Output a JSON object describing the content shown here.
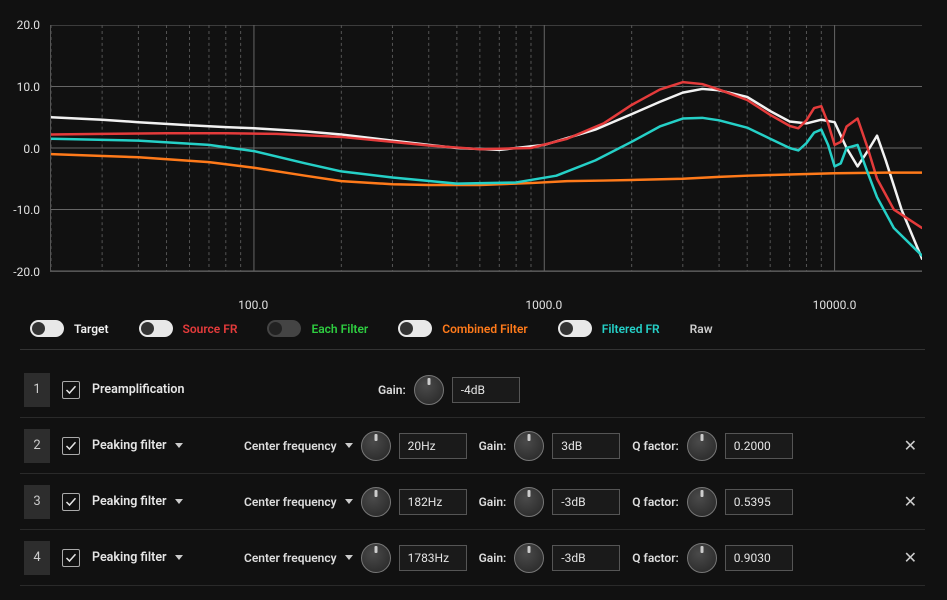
{
  "chart": {
    "type": "line",
    "y_ticks": [
      20.0,
      10.0,
      0.0,
      -10.0,
      -20.0
    ],
    "y_labels": [
      "20.0",
      "10.0",
      "0.0",
      "-10.0",
      "-20.0"
    ],
    "x_ticks_major": [
      100.0,
      1000.0,
      10000.0
    ],
    "x_labels": [
      "100.0",
      "1000.0",
      "10000.0"
    ],
    "x_scale": "log",
    "x_domain": [
      20,
      20000
    ],
    "y_domain": [
      -20,
      20
    ],
    "grid_color": "#666666",
    "minor_grid_color": "#555555",
    "background": "#111111",
    "axis_font_size": 12,
    "series": [
      {
        "name": "Target",
        "color": "#f2f2f2",
        "width": 2.5,
        "points": [
          [
            20,
            5.0
          ],
          [
            30,
            4.6
          ],
          [
            40,
            4.2
          ],
          [
            60,
            3.7
          ],
          [
            80,
            3.4
          ],
          [
            100,
            3.2
          ],
          [
            150,
            2.7
          ],
          [
            200,
            2.2
          ],
          [
            300,
            1.2
          ],
          [
            400,
            0.5
          ],
          [
            500,
            0.0
          ],
          [
            700,
            -0.3
          ],
          [
            1000,
            0.5
          ],
          [
            1500,
            3.0
          ],
          [
            2000,
            5.5
          ],
          [
            2500,
            7.5
          ],
          [
            3000,
            9.0
          ],
          [
            3500,
            9.6
          ],
          [
            4000,
            9.4
          ],
          [
            5000,
            8.3
          ],
          [
            6000,
            6.0
          ],
          [
            7000,
            4.3
          ],
          [
            8000,
            4.0
          ],
          [
            9000,
            4.6
          ],
          [
            10000,
            4.2
          ],
          [
            11000,
            0.0
          ],
          [
            12000,
            -3.0
          ],
          [
            13000,
            -0.5
          ],
          [
            14000,
            2.0
          ],
          [
            15000,
            -2.0
          ],
          [
            17000,
            -10.0
          ],
          [
            20000,
            -18.0
          ]
        ]
      },
      {
        "name": "Source FR",
        "color": "#e43b3b",
        "width": 2.5,
        "points": [
          [
            20,
            2.2
          ],
          [
            30,
            2.3
          ],
          [
            50,
            2.4
          ],
          [
            80,
            2.4
          ],
          [
            120,
            2.3
          ],
          [
            200,
            1.8
          ],
          [
            300,
            1.0
          ],
          [
            400,
            0.4
          ],
          [
            600,
            -0.2
          ],
          [
            900,
            0.0
          ],
          [
            1200,
            1.5
          ],
          [
            1600,
            4.0
          ],
          [
            2000,
            7.0
          ],
          [
            2500,
            9.5
          ],
          [
            3000,
            10.7
          ],
          [
            3500,
            10.4
          ],
          [
            4000,
            9.5
          ],
          [
            5000,
            7.8
          ],
          [
            6000,
            5.4
          ],
          [
            7000,
            3.6
          ],
          [
            7500,
            3.2
          ],
          [
            8000,
            4.5
          ],
          [
            8500,
            6.5
          ],
          [
            9000,
            6.8
          ],
          [
            9500,
            4.0
          ],
          [
            10000,
            0.5
          ],
          [
            10500,
            1.0
          ],
          [
            11000,
            3.5
          ],
          [
            12000,
            4.8
          ],
          [
            13000,
            0.0
          ],
          [
            14000,
            -5.0
          ],
          [
            16000,
            -10.0
          ],
          [
            20000,
            -13.0
          ]
        ]
      },
      {
        "name": "Combined Filter",
        "color": "#ff7a1a",
        "width": 2.5,
        "points": [
          [
            20,
            -1.0
          ],
          [
            40,
            -1.5
          ],
          [
            70,
            -2.3
          ],
          [
            100,
            -3.2
          ],
          [
            150,
            -4.5
          ],
          [
            200,
            -5.4
          ],
          [
            300,
            -5.9
          ],
          [
            400,
            -6.0
          ],
          [
            600,
            -6.0
          ],
          [
            900,
            -5.7
          ],
          [
            1200,
            -5.4
          ],
          [
            1600,
            -5.3
          ],
          [
            2000,
            -5.2
          ],
          [
            3000,
            -5.0
          ],
          [
            4000,
            -4.7
          ],
          [
            5000,
            -4.5
          ],
          [
            7000,
            -4.3
          ],
          [
            10000,
            -4.1
          ],
          [
            15000,
            -4.0
          ],
          [
            20000,
            -4.0
          ]
        ]
      },
      {
        "name": "Filtered FR",
        "color": "#25d0c7",
        "width": 2.5,
        "points": [
          [
            20,
            1.5
          ],
          [
            40,
            1.2
          ],
          [
            70,
            0.5
          ],
          [
            100,
            -0.5
          ],
          [
            150,
            -2.5
          ],
          [
            200,
            -3.8
          ],
          [
            300,
            -4.8
          ],
          [
            500,
            -5.8
          ],
          [
            800,
            -5.6
          ],
          [
            1100,
            -4.5
          ],
          [
            1500,
            -2.0
          ],
          [
            2000,
            1.0
          ],
          [
            2500,
            3.5
          ],
          [
            3000,
            4.8
          ],
          [
            3500,
            4.9
          ],
          [
            4000,
            4.5
          ],
          [
            5000,
            3.3
          ],
          [
            6000,
            1.5
          ],
          [
            7000,
            0.0
          ],
          [
            7500,
            -0.4
          ],
          [
            8000,
            0.8
          ],
          [
            8500,
            2.5
          ],
          [
            9000,
            3.0
          ],
          [
            9500,
            0.5
          ],
          [
            10000,
            -3.0
          ],
          [
            10500,
            -2.5
          ],
          [
            11000,
            0.0
          ],
          [
            12000,
            0.5
          ],
          [
            13000,
            -4.0
          ],
          [
            14000,
            -8.0
          ],
          [
            16000,
            -13.0
          ],
          [
            20000,
            -17.5
          ]
        ]
      }
    ]
  },
  "legend": [
    {
      "label": "Target",
      "color": "#f2f2f2",
      "on": true
    },
    {
      "label": "Source FR",
      "color": "#e43b3b",
      "on": true
    },
    {
      "label": "Each Filter",
      "color": "#2ecc40",
      "on": false
    },
    {
      "label": "Combined Filter",
      "color": "#ff7a1a",
      "on": true
    },
    {
      "label": "Filtered FR",
      "color": "#25d0c7",
      "on": true
    },
    {
      "label": "Raw",
      "color": "#cccccc",
      "on": null
    }
  ],
  "filters": [
    {
      "index": "1",
      "enabled": true,
      "type": "Preamplification",
      "has_dropdown": false,
      "cf_label": null,
      "cf_value": null,
      "gain_label": "Gain:",
      "gain_value": "-4dB",
      "q_label": null,
      "q_value": null,
      "removable": false
    },
    {
      "index": "2",
      "enabled": true,
      "type": "Peaking filter",
      "has_dropdown": true,
      "cf_label": "Center frequency",
      "cf_value": "20Hz",
      "gain_label": "Gain:",
      "gain_value": "3dB",
      "q_label": "Q factor:",
      "q_value": "0.2000",
      "removable": true
    },
    {
      "index": "3",
      "enabled": true,
      "type": "Peaking filter",
      "has_dropdown": true,
      "cf_label": "Center frequency",
      "cf_value": "182Hz",
      "gain_label": "Gain:",
      "gain_value": "-3dB",
      "q_label": "Q factor:",
      "q_value": "0.5395",
      "removable": true
    },
    {
      "index": "4",
      "enabled": true,
      "type": "Peaking filter",
      "has_dropdown": true,
      "cf_label": "Center frequency",
      "cf_value": "1783Hz",
      "gain_label": "Gain:",
      "gain_value": "-3dB",
      "q_label": "Q factor:",
      "q_value": "0.9030",
      "removable": true
    }
  ]
}
